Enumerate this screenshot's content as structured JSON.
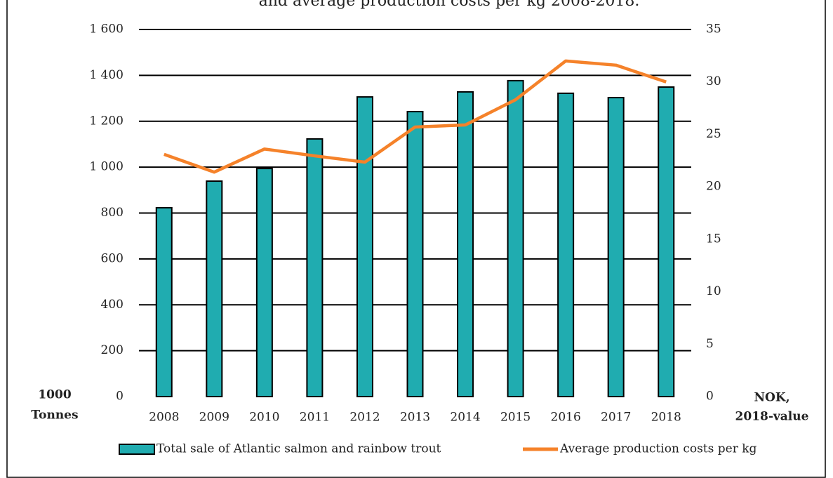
{
  "chart_data": {
    "type": "bar",
    "title": "and average production costs per kg 2008-2018.",
    "categories": [
      "2008",
      "2009",
      "2010",
      "2011",
      "2012",
      "2013",
      "2014",
      "2015",
      "2016",
      "2017",
      "2018"
    ],
    "series": [
      {
        "name": "Total sale of Atlantic salmon and rainbow trout",
        "color": "#20acb0",
        "type": "bar",
        "values": [
          823,
          939,
          994,
          1123,
          1306,
          1242,
          1328,
          1377,
          1322,
          1303,
          1349
        ]
      },
      {
        "name": "Average production costs per kg",
        "color": "#f5822a",
        "type": "line",
        "axis": "y2",
        "values": [
          23.1,
          21.4,
          23.6,
          22.95,
          22.35,
          25.7,
          25.9,
          28.3,
          32.0,
          31.6,
          30.0
        ]
      }
    ],
    "y_label": [
      "1000",
      "Tonnes"
    ],
    "y2_label": [
      "NOK,",
      "2018-value"
    ],
    "ylim": [
      0,
      1600
    ],
    "yticks": [
      0,
      200,
      400,
      600,
      800,
      {
        "value": 1000,
        "label": "1 000"
      },
      {
        "value": 1200,
        "label": "1 200"
      },
      {
        "value": 1400,
        "label": "1 400"
      },
      {
        "value": 1600,
        "label": "1 600"
      }
    ],
    "y2lim": [
      0,
      35
    ],
    "y2ticks": [
      0,
      5,
      10,
      15,
      20,
      25,
      30,
      35
    ],
    "grid": true,
    "legend": "bottom"
  }
}
